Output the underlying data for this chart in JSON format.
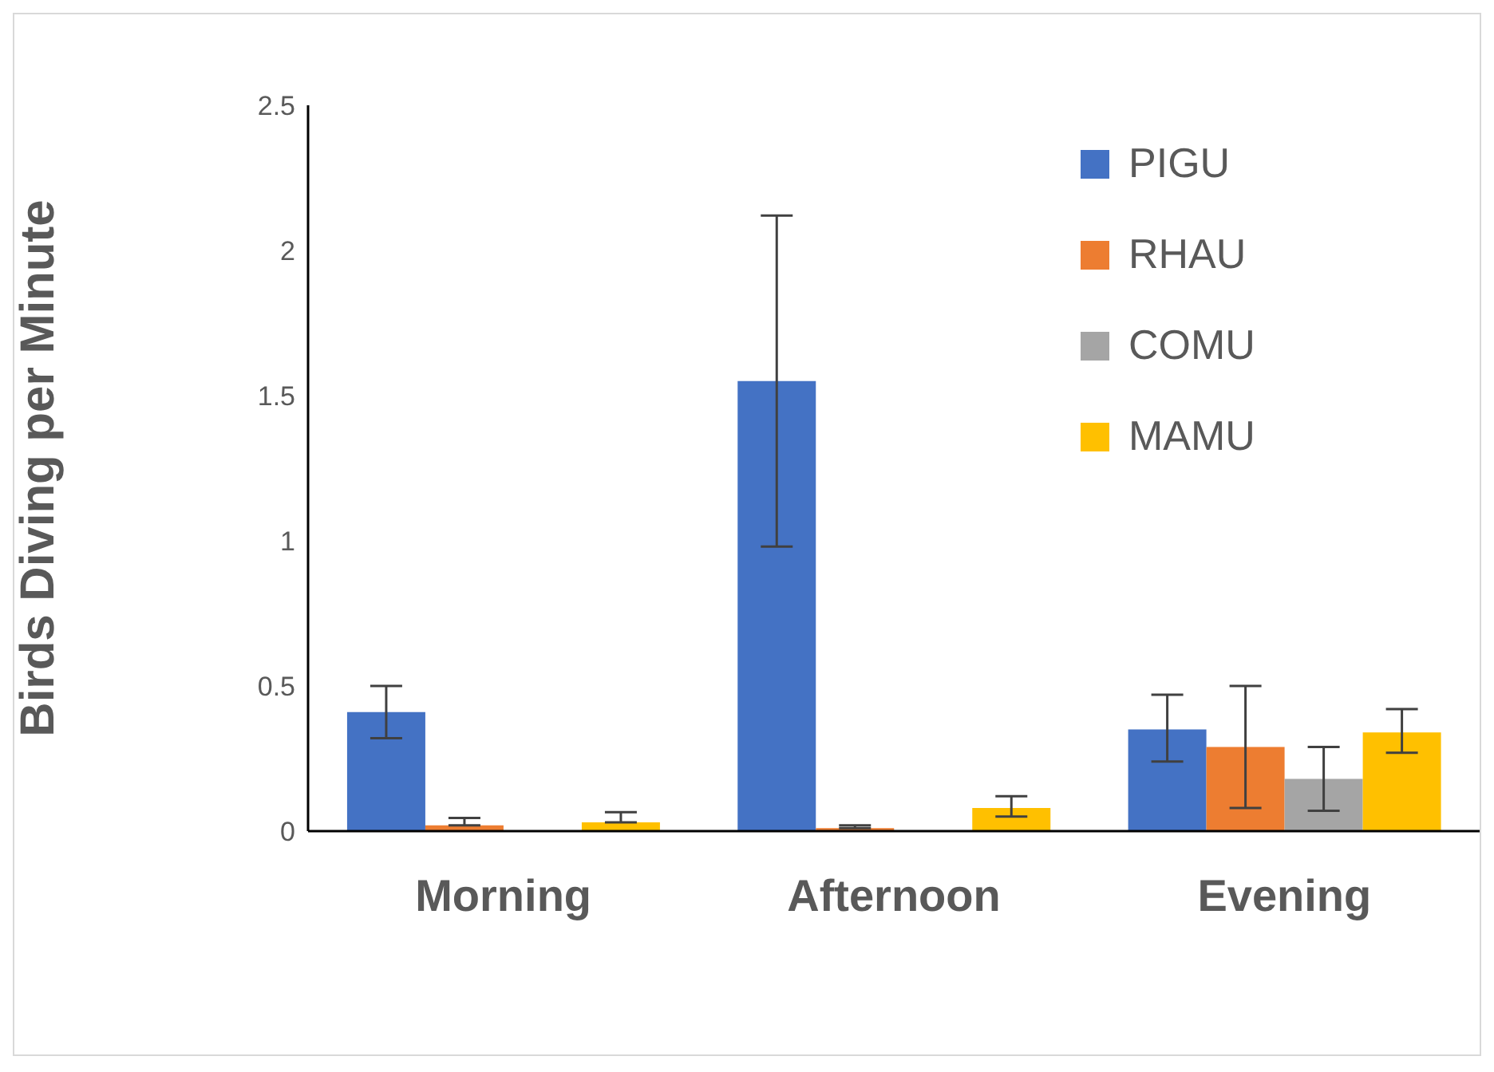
{
  "chart_data": {
    "type": "bar",
    "ylabel": "Birds Diving per Minute",
    "categories": [
      "Morning",
      "Afternoon",
      "Evening"
    ],
    "series": [
      {
        "name": "PIGU",
        "color": "#4472c4",
        "values": [
          0.41,
          1.55,
          0.35
        ],
        "errors": [
          [
            0.32,
            0.5
          ],
          [
            0.98,
            2.12
          ],
          [
            0.24,
            0.47
          ]
        ]
      },
      {
        "name": "RHAU",
        "color": "#ed7d31",
        "values": [
          0.02,
          0.01,
          0.29
        ],
        "errors": [
          [
            0.02,
            0.045
          ],
          [
            0.01,
            0.02
          ],
          [
            0.08,
            0.5
          ]
        ]
      },
      {
        "name": "COMU",
        "color": "#a5a5a5",
        "values": [
          0,
          0,
          0.18
        ],
        "errors": [
          null,
          null,
          [
            0.07,
            0.29
          ]
        ]
      },
      {
        "name": "MAMU",
        "color": "#ffc000",
        "values": [
          0.03,
          0.08,
          0.34
        ],
        "errors": [
          [
            0.03,
            0.065
          ],
          [
            0.05,
            0.12
          ],
          [
            0.27,
            0.42
          ]
        ]
      }
    ],
    "ylim": [
      0,
      2.5
    ],
    "yticks": [
      0,
      0.5,
      1,
      1.5,
      2,
      2.5
    ],
    "grid": false,
    "legend": "top right"
  }
}
